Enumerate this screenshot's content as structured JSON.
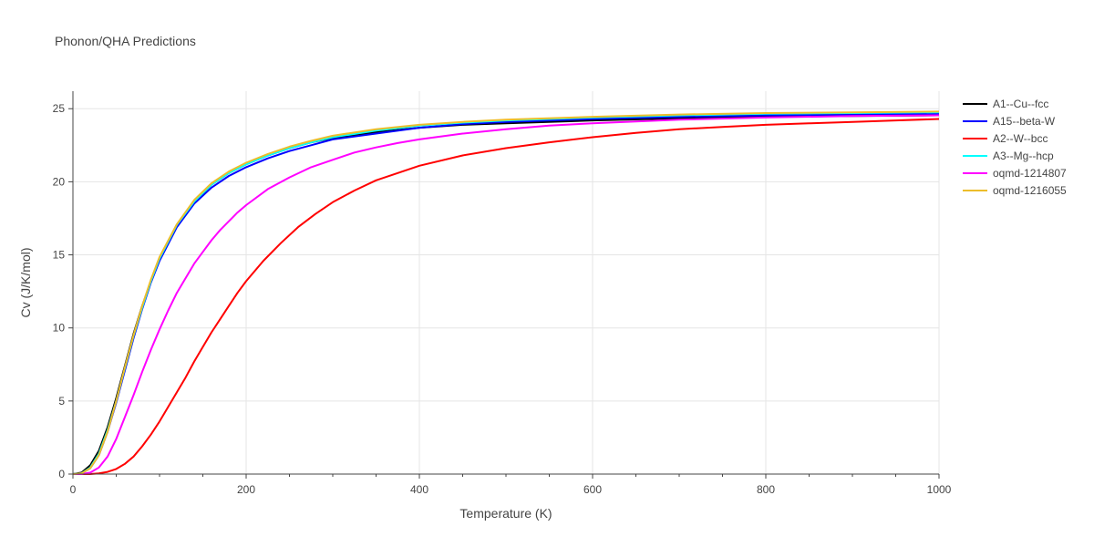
{
  "chart_data": {
    "type": "line",
    "title": "Phonon/QHA Predictions",
    "xlabel": "Temperature (K)",
    "ylabel": "Cv (J/K/mol)",
    "xlim": [
      0,
      1000
    ],
    "ylim": [
      0,
      26.2
    ],
    "xticks": [
      0,
      200,
      400,
      600,
      800,
      1000
    ],
    "yticks": [
      0,
      5,
      10,
      15,
      20,
      25
    ],
    "grid": true,
    "legend_position": "top-right",
    "series": [
      {
        "name": "A1--Cu--fcc",
        "color": "#000000",
        "points": [
          [
            0,
            0
          ],
          [
            10,
            0.1
          ],
          [
            20,
            0.6
          ],
          [
            30,
            1.6
          ],
          [
            40,
            3.2
          ],
          [
            50,
            5.2
          ],
          [
            60,
            7.4
          ],
          [
            70,
            9.6
          ],
          [
            80,
            11.5
          ],
          [
            90,
            13.2
          ],
          [
            100,
            14.7
          ],
          [
            120,
            17.0
          ],
          [
            140,
            18.6
          ],
          [
            160,
            19.8
          ],
          [
            180,
            20.6
          ],
          [
            200,
            21.2
          ],
          [
            225,
            21.8
          ],
          [
            250,
            22.3
          ],
          [
            275,
            22.7
          ],
          [
            300,
            23.0
          ],
          [
            350,
            23.4
          ],
          [
            400,
            23.7
          ],
          [
            450,
            23.9
          ],
          [
            500,
            24.0
          ],
          [
            600,
            24.2
          ],
          [
            700,
            24.35
          ],
          [
            800,
            24.45
          ],
          [
            900,
            24.5
          ],
          [
            1000,
            24.55
          ]
        ]
      },
      {
        "name": "A15--beta-W",
        "color": "#0000ff",
        "points": [
          [
            0,
            0
          ],
          [
            10,
            0.05
          ],
          [
            20,
            0.4
          ],
          [
            30,
            1.3
          ],
          [
            40,
            2.9
          ],
          [
            50,
            4.9
          ],
          [
            60,
            7.1
          ],
          [
            70,
            9.3
          ],
          [
            80,
            11.3
          ],
          [
            90,
            13.1
          ],
          [
            100,
            14.6
          ],
          [
            120,
            16.9
          ],
          [
            140,
            18.5
          ],
          [
            160,
            19.6
          ],
          [
            180,
            20.4
          ],
          [
            200,
            21.0
          ],
          [
            225,
            21.6
          ],
          [
            250,
            22.1
          ],
          [
            275,
            22.5
          ],
          [
            300,
            22.9
          ],
          [
            350,
            23.3
          ],
          [
            400,
            23.7
          ],
          [
            450,
            23.95
          ],
          [
            500,
            24.1
          ],
          [
            600,
            24.3
          ],
          [
            700,
            24.45
          ],
          [
            800,
            24.55
          ],
          [
            900,
            24.6
          ],
          [
            1000,
            24.65
          ]
        ]
      },
      {
        "name": "A2--W--bcc",
        "color": "#ff0000",
        "points": [
          [
            0,
            0
          ],
          [
            20,
            0.0
          ],
          [
            30,
            0.05
          ],
          [
            40,
            0.15
          ],
          [
            50,
            0.35
          ],
          [
            60,
            0.7
          ],
          [
            70,
            1.2
          ],
          [
            80,
            1.9
          ],
          [
            90,
            2.7
          ],
          [
            100,
            3.6
          ],
          [
            110,
            4.6
          ],
          [
            120,
            5.6
          ],
          [
            130,
            6.6
          ],
          [
            140,
            7.7
          ],
          [
            150,
            8.7
          ],
          [
            160,
            9.7
          ],
          [
            170,
            10.6
          ],
          [
            180,
            11.5
          ],
          [
            190,
            12.4
          ],
          [
            200,
            13.2
          ],
          [
            220,
            14.6
          ],
          [
            240,
            15.8
          ],
          [
            260,
            16.9
          ],
          [
            280,
            17.8
          ],
          [
            300,
            18.6
          ],
          [
            325,
            19.4
          ],
          [
            350,
            20.1
          ],
          [
            375,
            20.6
          ],
          [
            400,
            21.1
          ],
          [
            450,
            21.8
          ],
          [
            500,
            22.3
          ],
          [
            550,
            22.7
          ],
          [
            600,
            23.05
          ],
          [
            650,
            23.35
          ],
          [
            700,
            23.6
          ],
          [
            750,
            23.75
          ],
          [
            800,
            23.9
          ],
          [
            850,
            24.0
          ],
          [
            900,
            24.1
          ],
          [
            950,
            24.2
          ],
          [
            1000,
            24.3
          ]
        ]
      },
      {
        "name": "A3--Mg--hcp",
        "color": "#00ffff",
        "points": [
          [
            0,
            0
          ],
          [
            10,
            0.05
          ],
          [
            20,
            0.45
          ],
          [
            30,
            1.4
          ],
          [
            40,
            3.0
          ],
          [
            50,
            5.0
          ],
          [
            60,
            7.25
          ],
          [
            70,
            9.45
          ],
          [
            80,
            11.4
          ],
          [
            90,
            13.2
          ],
          [
            100,
            14.75
          ],
          [
            120,
            17.05
          ],
          [
            140,
            18.65
          ],
          [
            160,
            19.8
          ],
          [
            180,
            20.6
          ],
          [
            200,
            21.2
          ],
          [
            225,
            21.8
          ],
          [
            250,
            22.3
          ],
          [
            275,
            22.7
          ],
          [
            300,
            23.05
          ],
          [
            350,
            23.5
          ],
          [
            400,
            23.85
          ],
          [
            450,
            24.05
          ],
          [
            500,
            24.2
          ],
          [
            600,
            24.4
          ],
          [
            700,
            24.55
          ],
          [
            800,
            24.65
          ],
          [
            900,
            24.7
          ],
          [
            1000,
            24.75
          ]
        ]
      },
      {
        "name": "oqmd-1214807",
        "color": "#ff00ff",
        "points": [
          [
            0,
            0
          ],
          [
            10,
            0.0
          ],
          [
            20,
            0.1
          ],
          [
            30,
            0.45
          ],
          [
            40,
            1.2
          ],
          [
            50,
            2.4
          ],
          [
            60,
            3.9
          ],
          [
            70,
            5.4
          ],
          [
            80,
            7.0
          ],
          [
            90,
            8.5
          ],
          [
            100,
            9.9
          ],
          [
            110,
            11.2
          ],
          [
            120,
            12.4
          ],
          [
            130,
            13.4
          ],
          [
            140,
            14.4
          ],
          [
            150,
            15.2
          ],
          [
            160,
            16.0
          ],
          [
            170,
            16.7
          ],
          [
            180,
            17.3
          ],
          [
            190,
            17.9
          ],
          [
            200,
            18.4
          ],
          [
            225,
            19.5
          ],
          [
            250,
            20.3
          ],
          [
            275,
            21.0
          ],
          [
            300,
            21.5
          ],
          [
            325,
            22.0
          ],
          [
            350,
            22.35
          ],
          [
            375,
            22.65
          ],
          [
            400,
            22.9
          ],
          [
            450,
            23.3
          ],
          [
            500,
            23.6
          ],
          [
            550,
            23.85
          ],
          [
            600,
            24.0
          ],
          [
            700,
            24.25
          ],
          [
            800,
            24.4
          ],
          [
            900,
            24.5
          ],
          [
            1000,
            24.55
          ]
        ]
      },
      {
        "name": "oqmd-1216055",
        "color": "#ecbd2b",
        "points": [
          [
            0,
            0
          ],
          [
            10,
            0.05
          ],
          [
            20,
            0.4
          ],
          [
            30,
            1.3
          ],
          [
            40,
            2.9
          ],
          [
            50,
            5.0
          ],
          [
            60,
            7.3
          ],
          [
            70,
            9.5
          ],
          [
            80,
            11.5
          ],
          [
            90,
            13.3
          ],
          [
            100,
            14.85
          ],
          [
            120,
            17.1
          ],
          [
            140,
            18.75
          ],
          [
            160,
            19.9
          ],
          [
            180,
            20.7
          ],
          [
            200,
            21.3
          ],
          [
            225,
            21.9
          ],
          [
            250,
            22.4
          ],
          [
            275,
            22.8
          ],
          [
            300,
            23.15
          ],
          [
            350,
            23.6
          ],
          [
            400,
            23.9
          ],
          [
            450,
            24.1
          ],
          [
            500,
            24.25
          ],
          [
            600,
            24.45
          ],
          [
            700,
            24.6
          ],
          [
            800,
            24.7
          ],
          [
            900,
            24.75
          ],
          [
            1000,
            24.8
          ]
        ]
      }
    ]
  }
}
